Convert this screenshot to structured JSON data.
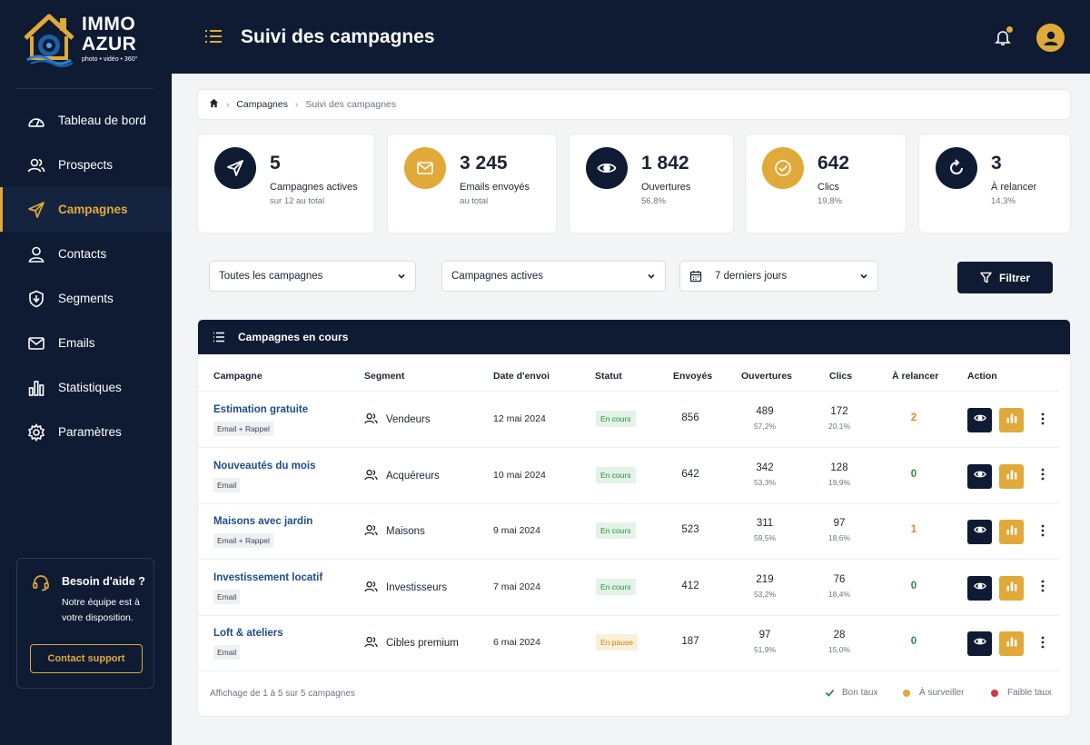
{
  "brand": {
    "line1": "IMMO",
    "line2": "AZUR",
    "tagline": "photo • vidéo • 360°"
  },
  "header": {
    "title": "Suivi des campagnes"
  },
  "nav": [
    {
      "label": "Tableau de bord",
      "icon": "dashboard-icon"
    },
    {
      "label": "Prospects",
      "icon": "users-icon"
    },
    {
      "label": "Campagnes",
      "icon": "send-icon",
      "active": true
    },
    {
      "label": "Contacts",
      "icon": "user-icon"
    },
    {
      "label": "Segments",
      "icon": "shield-icon"
    },
    {
      "label": "Emails",
      "icon": "mail-icon"
    },
    {
      "label": "Statistiques",
      "icon": "bar-chart-icon"
    },
    {
      "label": "Paramètres",
      "icon": "gear-icon"
    }
  ],
  "help": {
    "title": "Besoin d'aide ?",
    "text": "Notre équipe est à votre disposition.",
    "button": "Contact support"
  },
  "breadcrumb": {
    "item1": "Campagnes",
    "item2": "Suivi des campagnes"
  },
  "stats": [
    {
      "value": "5",
      "label": "Campagnes actives",
      "sub": "sur 12 au total",
      "icon": "send-icon",
      "color": "#0e1b33"
    },
    {
      "value": "3 245",
      "label": "Emails envoyés",
      "sub": "au total",
      "icon": "mail-icon",
      "color": "#e1a93a"
    },
    {
      "value": "1 842",
      "label": "Ouvertures",
      "sub": "56,8%",
      "icon": "eye-icon",
      "color": "#0e1b33"
    },
    {
      "value": "642",
      "label": "Clics",
      "sub": "19,8%",
      "icon": "check-circle-icon",
      "color": "#e1a93a"
    },
    {
      "value": "3",
      "label": "À relancer",
      "sub": "14,3%",
      "icon": "refresh-icon",
      "color": "#0e1b33"
    }
  ],
  "filters": {
    "campaigns": "Toutes les campagnes",
    "status": "Campagnes actives",
    "period": "7 derniers jours",
    "button": "Filtrer"
  },
  "table": {
    "title": "Campagnes en cours",
    "columns": [
      "Campagne",
      "Segment",
      "Date d'envoi",
      "Statut",
      "Envoyés",
      "Ouvertures",
      "Clics",
      "À relancer",
      "Action"
    ],
    "rows": [
      {
        "name": "Estimation gratuite",
        "tag": "Email + Rappel",
        "segment": "Vendeurs",
        "date": "12 mai 2024",
        "status": "En cours",
        "status_type": "ok",
        "sent": "856",
        "opens": "489",
        "opens_pct": "57,2%",
        "clicks": "172",
        "clicks_pct": "20,1%",
        "relance": "2",
        "relance_color": "#e08a1e"
      },
      {
        "name": "Nouveautés du mois",
        "tag": "Email",
        "segment": "Acquéreurs",
        "date": "10 mai 2024",
        "status": "En cours",
        "status_type": "ok",
        "sent": "642",
        "opens": "342",
        "opens_pct": "53,3%",
        "clicks": "128",
        "clicks_pct": "19,9%",
        "relance": "0",
        "relance_color": "#2e8b46"
      },
      {
        "name": "Maisons avec jardin",
        "tag": "Email + Rappel",
        "segment": "Maisons",
        "date": "9 mai 2024",
        "status": "En cours",
        "status_type": "ok",
        "sent": "523",
        "opens": "311",
        "opens_pct": "59,5%",
        "clicks": "97",
        "clicks_pct": "18,6%",
        "relance": "1",
        "relance_color": "#e08a1e"
      },
      {
        "name": "Investissement locatif",
        "tag": "Email",
        "segment": "Investisseurs",
        "date": "7 mai 2024",
        "status": "En cours",
        "status_type": "ok",
        "sent": "412",
        "opens": "219",
        "opens_pct": "53,2%",
        "clicks": "76",
        "clicks_pct": "18,4%",
        "relance": "0",
        "relance_color": "#2e8b46"
      },
      {
        "name": "Loft & ateliers",
        "tag": "Email",
        "segment": "Cibles premium",
        "date": "6 mai 2024",
        "status": "En pause",
        "status_type": "pause",
        "sent": "187",
        "opens": "97",
        "opens_pct": "51,9%",
        "clicks": "28",
        "clicks_pct": "15,0%",
        "relance": "0",
        "relance_color": "#2e8b46"
      }
    ],
    "footer": "Affichage de 1 à 5 sur 5 campagnes",
    "legend": [
      {
        "label": "Bon taux",
        "color": "#2e8b46"
      },
      {
        "label": "À surveiller",
        "color": "#e1a93a"
      },
      {
        "label": "Faible taux",
        "color": "#d9363e"
      }
    ]
  }
}
